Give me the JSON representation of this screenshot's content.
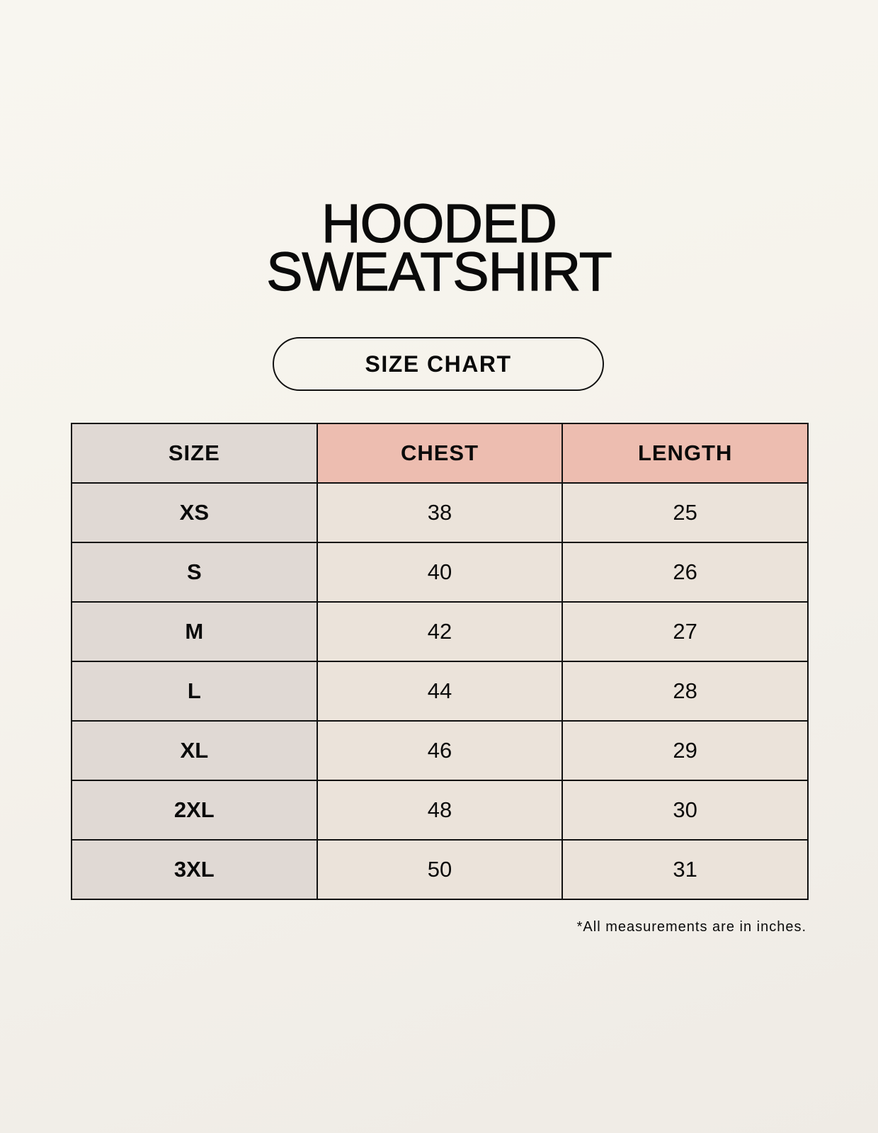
{
  "title": {
    "line1": "HOODED",
    "line2": "SWEATSHIRT"
  },
  "badge": "SIZE CHART",
  "colors": {
    "size_column": "#e0d9d4",
    "header_highlight": "#edbdb0",
    "value_cells": "#ebe3da"
  },
  "table": {
    "headers": [
      "SIZE",
      "CHEST",
      "LENGTH"
    ],
    "rows": [
      [
        "XS",
        "38",
        "25"
      ],
      [
        "S",
        "40",
        "26"
      ],
      [
        "M",
        "42",
        "27"
      ],
      [
        "L",
        "44",
        "28"
      ],
      [
        "XL",
        "46",
        "29"
      ],
      [
        "2XL",
        "48",
        "30"
      ],
      [
        "3XL",
        "50",
        "31"
      ]
    ]
  },
  "footnote": "*All measurements are in inches."
}
